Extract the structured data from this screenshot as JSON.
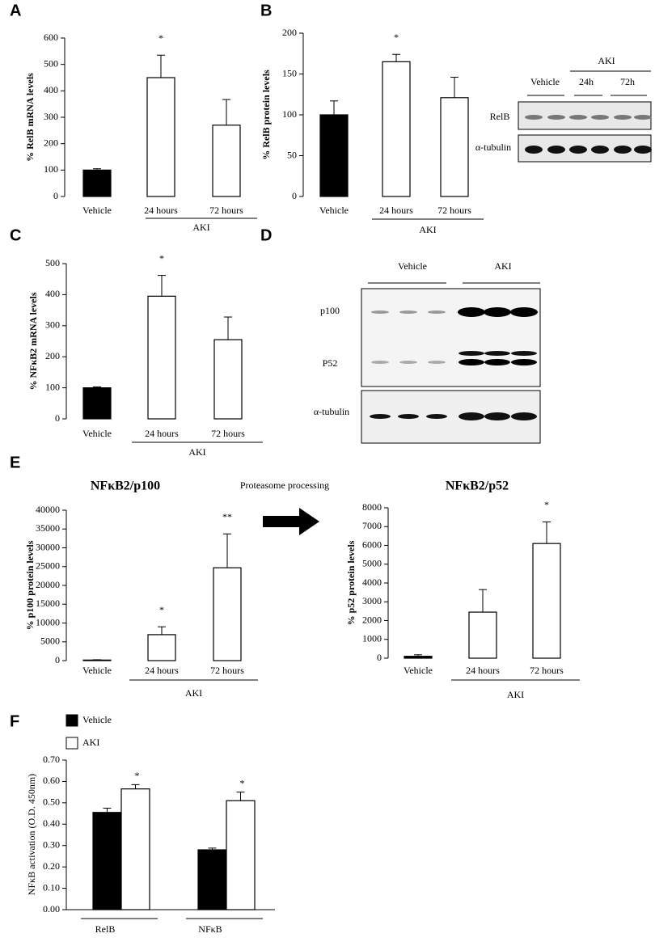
{
  "chart_data": [
    {
      "type": "bar",
      "panel": "A",
      "y_label": "% RelB mRNA levels",
      "categories": [
        "Vehicle",
        "24 hours",
        "72 hours"
      ],
      "group_label": "AKI",
      "values": [
        100,
        450,
        270
      ],
      "errors": [
        5,
        85,
        97
      ],
      "colors": [
        "#000000",
        "#ffffff",
        "#ffffff"
      ],
      "annotations": [
        null,
        "*",
        null
      ],
      "ylim": [
        0,
        600
      ],
      "yticks": [
        0,
        100,
        200,
        300,
        400,
        500,
        600
      ]
    },
    {
      "type": "bar",
      "panel": "B",
      "y_label": "% RelB protein levels",
      "categories": [
        "Vehicle",
        "24 hours",
        "72 hours"
      ],
      "group_label": "AKI",
      "values": [
        100,
        165,
        121
      ],
      "errors": [
        17,
        9,
        25
      ],
      "colors": [
        "#000000",
        "#ffffff",
        "#ffffff"
      ],
      "annotations": [
        null,
        "*",
        null
      ],
      "ylim": [
        0,
        200
      ],
      "yticks": [
        0,
        50,
        100,
        150,
        200
      ]
    },
    {
      "type": "bar",
      "panel": "C",
      "y_label": "% NFκB2 mRNA levels",
      "categories": [
        "Vehicle",
        "24 hours",
        "72 hours"
      ],
      "group_label": "AKI",
      "values": [
        100,
        395,
        255
      ],
      "errors": [
        3,
        67,
        73
      ],
      "colors": [
        "#000000",
        "#ffffff",
        "#ffffff"
      ],
      "annotations": [
        null,
        "*",
        null
      ],
      "ylim": [
        0,
        500
      ],
      "yticks": [
        0,
        100,
        200,
        300,
        400,
        500
      ]
    },
    {
      "type": "bar",
      "panel": "E",
      "title": "NFκB2/p100",
      "y_label": "% p100 protein levels",
      "categories": [
        "Vehicle",
        "24 hours",
        "72 hours"
      ],
      "group_label": "AKI",
      "values": [
        150,
        6900,
        24700
      ],
      "errors": [
        80,
        2100,
        9000
      ],
      "colors": [
        "#000000",
        "#ffffff",
        "#ffffff"
      ],
      "annotations": [
        null,
        "*",
        "**"
      ],
      "ylim": [
        0,
        40000
      ],
      "yticks": [
        0,
        5000,
        10000,
        15000,
        20000,
        25000,
        30000,
        35000,
        40000
      ]
    },
    {
      "type": "bar",
      "title": "NFκB2/p52",
      "y_label": "% p52 protein levels",
      "categories": [
        "Vehicle",
        "24 hours",
        "72 hours"
      ],
      "group_label": "AKI",
      "values": [
        100,
        2450,
        6100
      ],
      "errors": [
        80,
        1200,
        1150
      ],
      "colors": [
        "#000000",
        "#ffffff",
        "#ffffff"
      ],
      "annotations": [
        null,
        null,
        "*"
      ],
      "ylim": [
        0,
        8000
      ],
      "yticks": [
        0,
        1000,
        2000,
        3000,
        4000,
        5000,
        6000,
        7000,
        8000
      ]
    },
    {
      "type": "grouped_bar",
      "panel": "F",
      "y_label": "NFκB activation (O.D. 450nm)",
      "categories": [
        "RelB",
        "NFκB"
      ],
      "series": [
        {
          "name": "Vehicle",
          "color": "#000000",
          "values": [
            0.455,
            0.28
          ],
          "errors": [
            0.02,
            0.008
          ]
        },
        {
          "name": "AKI",
          "color": "#ffffff",
          "values": [
            0.565,
            0.51
          ],
          "errors": [
            0.02,
            0.04
          ],
          "annotations": [
            "*",
            "*"
          ]
        }
      ],
      "ylim": [
        0,
        0.7
      ],
      "yticks": [
        {
          "value": 0,
          "label": "0.00"
        },
        {
          "value": 0.1,
          "label": "0.10"
        },
        {
          "value": 0.2,
          "label": "0.20"
        },
        {
          "value": 0.3,
          "label": "0.30"
        },
        {
          "value": 0.4,
          "label": "0.40"
        },
        {
          "value": 0.5,
          "label": "0.50"
        },
        {
          "value": 0.6,
          "label": "0.60"
        },
        {
          "value": 0.7,
          "label": "0.70"
        }
      ]
    }
  ],
  "arrow_label": "Proteasome processing",
  "blots": [
    {
      "panel": "B",
      "group_label": "AKI",
      "lanes": [
        "Vehicle",
        "24h",
        "72h"
      ],
      "rows": [
        "RelB",
        "α-tubulin"
      ]
    },
    {
      "panel": "D",
      "lanes": [
        "Vehicle",
        "AKI"
      ],
      "rows": [
        "p100",
        "P52",
        "α-tubulin"
      ]
    }
  ]
}
